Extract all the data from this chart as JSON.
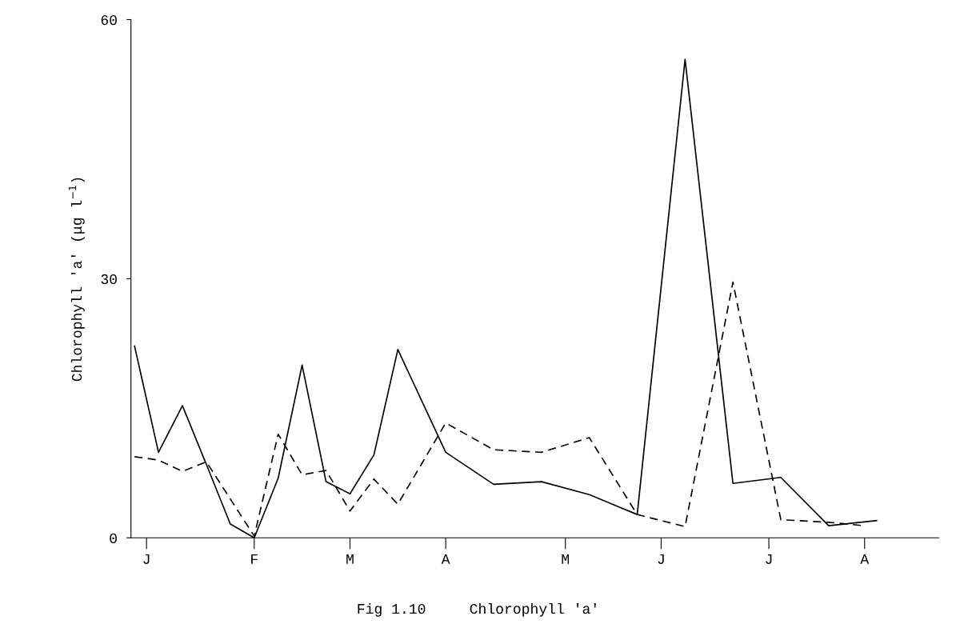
{
  "chart_data": {
    "type": "line",
    "title": "Fig 1.10     Chlorophyll 'a'",
    "ylabel": "Chlorophyll 'a' (μg l$^{−1}$)",
    "categories": [
      null,
      "J",
      null,
      null,
      null,
      null,
      null,
      null,
      null,
      null,
      "F",
      null,
      null,
      null,
      null,
      null,
      null,
      null,
      "M",
      null,
      null,
      null,
      null,
      null,
      null,
      null,
      "A",
      null,
      null,
      null,
      null,
      null,
      null,
      null,
      null,
      null,
      "M",
      null,
      null,
      null,
      null,
      null,
      null,
      null,
      "J",
      null,
      null,
      null,
      null,
      null,
      null,
      null,
      null,
      "J",
      null,
      null,
      null,
      null,
      null,
      null,
      null,
      "A",
      null
    ],
    "ylim": [
      0,
      60
    ],
    "yticks": [
      0,
      30,
      60
    ],
    "grid": false,
    "marker": "none",
    "series": [
      {
        "color": "#000000",
        "line_style": "solid",
        "values": [
          22.2,
          null,
          9.9,
          null,
          15.3,
          null,
          8.5,
          null,
          1.6,
          null,
          0,
          null,
          6.9,
          null,
          20,
          null,
          6.5,
          null,
          5.1,
          null,
          9.6,
          null,
          21.8,
          null,
          null,
          null,
          9.9,
          null,
          null,
          null,
          6.2,
          null,
          null,
          null,
          6.5,
          null,
          null,
          null,
          5.0,
          null,
          null,
          null,
          2.7,
          null,
          null,
          null,
          55.4,
          null,
          null,
          null,
          6.3,
          null,
          null,
          null,
          7.0,
          null,
          null,
          null,
          1.4,
          null,
          null,
          null,
          2.0
        ]
      },
      {
        "color": "#000000",
        "line_style": "dashed",
        "values": [
          9.4,
          null,
          9.0,
          null,
          7.7,
          null,
          8.8,
          null,
          null,
          null,
          0.2,
          null,
          12,
          null,
          7.3,
          null,
          7.8,
          null,
          3.1,
          null,
          6.8,
          null,
          3.9,
          null,
          null,
          null,
          13.3,
          null,
          null,
          null,
          10.2,
          null,
          null,
          null,
          9.9,
          null,
          null,
          null,
          11.6,
          null,
          null,
          null,
          2.7,
          null,
          null,
          null,
          1.3,
          null,
          null,
          null,
          29.6,
          null,
          null,
          null,
          2.1,
          null,
          null,
          null,
          1.8,
          null,
          null,
          1.4,
          null
        ]
      }
    ]
  }
}
